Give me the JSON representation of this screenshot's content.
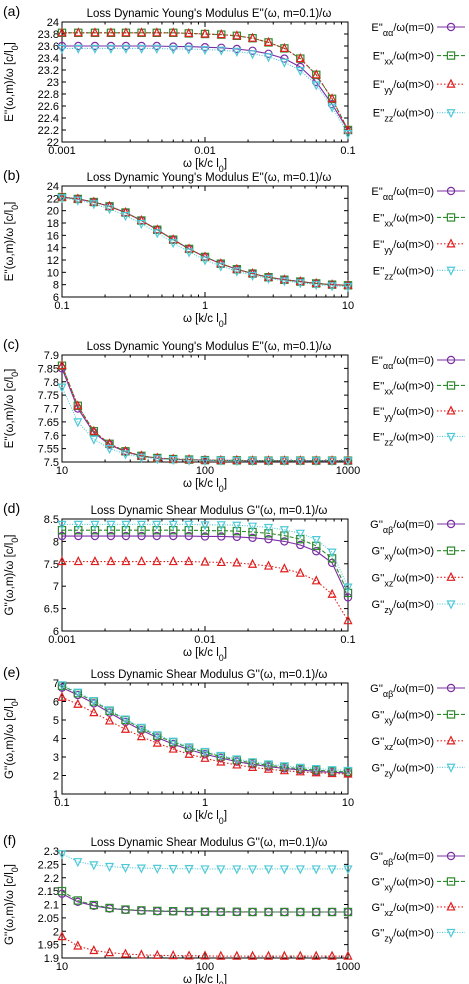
{
  "colors": {
    "aa": "#7b2fa6",
    "xx": "#2d8a2d",
    "yy": "#e01e1e",
    "zz": "#4fc9d8"
  },
  "markers": {
    "aa": "circle",
    "xx": "square",
    "yy": "triangle-up",
    "zz": "triangle-down"
  },
  "chart_data": [
    {
      "panel_label": "(a)",
      "type": "line",
      "title": "Loss Dynamic Young's Modulus E''(ω, m=0.1)/ω",
      "xlabel": "ω [k/c l0]",
      "ylabel": "E''(ω,m)/ω [c/l0]",
      "xscale": "log",
      "xlim": [
        0.001,
        0.1
      ],
      "ylim": [
        22,
        24
      ],
      "xticks": [
        0.001,
        0.01,
        0.1
      ],
      "xtick_labels": [
        "0.001",
        "0.01",
        "0.1"
      ],
      "yticks": [
        22,
        22.2,
        22.4,
        22.6,
        22.8,
        23,
        23.2,
        23.4,
        23.6,
        23.8,
        24
      ],
      "ytick_labels": [
        "22",
        "22.2",
        "22.4",
        "22.6",
        "22.8",
        "23",
        "23.2",
        "23.4",
        "23.6",
        "23.8",
        "24"
      ],
      "x": [
        0.001,
        0.0013,
        0.0017,
        0.0022,
        0.0028,
        0.0036,
        0.0046,
        0.006,
        0.0077,
        0.01,
        0.013,
        0.0167,
        0.0215,
        0.0278,
        0.0359,
        0.0464,
        0.06,
        0.0774,
        0.1
      ],
      "series": [
        {
          "key": "aa",
          "name": "E''αα/ω(m=0)",
          "values": [
            23.6,
            23.6,
            23.6,
            23.6,
            23.6,
            23.6,
            23.6,
            23.59,
            23.59,
            23.58,
            23.57,
            23.55,
            23.52,
            23.47,
            23.39,
            23.25,
            23.0,
            22.63,
            22.2
          ]
        },
        {
          "key": "xx",
          "name": "E''xx/ω(m>0)",
          "values": [
            23.82,
            23.82,
            23.82,
            23.82,
            23.82,
            23.82,
            23.82,
            23.82,
            23.81,
            23.8,
            23.79,
            23.77,
            23.73,
            23.66,
            23.56,
            23.39,
            23.12,
            22.72,
            22.2
          ]
        },
        {
          "key": "yy",
          "name": "E''yy/ω(m>0)",
          "values": [
            23.82,
            23.82,
            23.82,
            23.82,
            23.82,
            23.82,
            23.82,
            23.82,
            23.81,
            23.8,
            23.79,
            23.77,
            23.73,
            23.66,
            23.56,
            23.39,
            23.12,
            22.72,
            22.2
          ]
        },
        {
          "key": "zz",
          "name": "E''zz/ω(m>0)",
          "values": [
            23.56,
            23.56,
            23.56,
            23.56,
            23.56,
            23.56,
            23.56,
            23.55,
            23.55,
            23.54,
            23.53,
            23.51,
            23.47,
            23.42,
            23.33,
            23.19,
            22.95,
            22.58,
            22.14
          ]
        }
      ]
    },
    {
      "panel_label": "(b)",
      "type": "line",
      "title": "Loss Dynamic Young's Modulus E''(ω, m=0.1)/ω",
      "xlabel": "ω [k/c l0]",
      "ylabel": "E''(ω,m)/ω [c/l0]",
      "xscale": "log",
      "xlim": [
        0.1,
        10
      ],
      "ylim": [
        6,
        24
      ],
      "xticks": [
        0.1,
        1,
        10
      ],
      "xtick_labels": [
        "0.1",
        "1",
        "10"
      ],
      "yticks": [
        6,
        8,
        10,
        12,
        14,
        16,
        18,
        20,
        22,
        24
      ],
      "ytick_labels": [
        "6",
        "8",
        "10",
        "12",
        "14",
        "16",
        "18",
        "20",
        "22",
        "24"
      ],
      "x": [
        0.1,
        0.129,
        0.167,
        0.215,
        0.278,
        0.359,
        0.464,
        0.599,
        0.774,
        1.0,
        1.29,
        1.67,
        2.15,
        2.78,
        3.59,
        4.64,
        5.99,
        7.74,
        10
      ],
      "series": [
        {
          "key": "aa",
          "name": "E''αα/ω(m=0)",
          "values": [
            22.2,
            21.9,
            21.4,
            20.7,
            19.7,
            18.4,
            16.9,
            15.3,
            13.8,
            12.5,
            11.4,
            10.5,
            9.8,
            9.2,
            8.8,
            8.5,
            8.2,
            8.0,
            7.9
          ]
        },
        {
          "key": "xx",
          "name": "E''xx/ω(m>0)",
          "values": [
            22.2,
            21.9,
            21.4,
            20.7,
            19.7,
            18.4,
            16.9,
            15.3,
            13.8,
            12.5,
            11.4,
            10.5,
            9.8,
            9.2,
            8.8,
            8.5,
            8.2,
            8.0,
            7.9
          ]
        },
        {
          "key": "yy",
          "name": "E''yy/ω(m>0)",
          "values": [
            22.2,
            21.9,
            21.4,
            20.7,
            19.7,
            18.4,
            16.9,
            15.3,
            13.8,
            12.5,
            11.4,
            10.5,
            9.8,
            9.2,
            8.8,
            8.5,
            8.2,
            8.0,
            7.9
          ]
        },
        {
          "key": "zz",
          "name": "E''zz/ω(m>0)",
          "values": [
            22.1,
            21.7,
            21.1,
            20.3,
            19.2,
            17.9,
            16.4,
            14.8,
            13.3,
            12.0,
            11.0,
            10.2,
            9.5,
            9.0,
            8.6,
            8.3,
            8.0,
            7.8,
            7.7
          ]
        }
      ]
    },
    {
      "panel_label": "(c)",
      "type": "line",
      "title": "Loss Dynamic Young's Modulus E''(ω, m=0.1)/ω",
      "xlabel": "ω [k/c l0]",
      "ylabel": "E''(ω,m)/ω [c/l0]",
      "xscale": "log",
      "xlim": [
        10,
        1000
      ],
      "ylim": [
        7.5,
        7.9
      ],
      "xticks": [
        10,
        100,
        1000
      ],
      "xtick_labels": [
        "10",
        "100",
        "1000"
      ],
      "yticks": [
        7.5,
        7.55,
        7.6,
        7.65,
        7.7,
        7.75,
        7.8,
        7.85,
        7.9
      ],
      "ytick_labels": [
        "7.5",
        "7.55",
        "7.6",
        "7.65",
        "7.7",
        "7.75",
        "7.8",
        "7.85",
        "7.9"
      ],
      "x": [
        10,
        12.9,
        16.7,
        21.5,
        27.8,
        35.9,
        46.4,
        59.9,
        77.4,
        100,
        129,
        167,
        215,
        278,
        359,
        464,
        599,
        774,
        1000
      ],
      "series": [
        {
          "key": "aa",
          "name": "E''αα/ω(m=0)",
          "values": [
            7.85,
            7.7,
            7.61,
            7.565,
            7.538,
            7.522,
            7.514,
            7.51,
            7.508,
            7.507,
            7.506,
            7.506,
            7.505,
            7.505,
            7.505,
            7.505,
            7.505,
            7.505,
            7.505
          ]
        },
        {
          "key": "xx",
          "name": "E''xx/ω(m>0)",
          "values": [
            7.86,
            7.71,
            7.615,
            7.568,
            7.54,
            7.523,
            7.515,
            7.511,
            7.509,
            7.507,
            7.506,
            7.506,
            7.505,
            7.505,
            7.505,
            7.505,
            7.505,
            7.505,
            7.505
          ]
        },
        {
          "key": "yy",
          "name": "E''yy/ω(m>0)",
          "values": [
            7.86,
            7.71,
            7.615,
            7.568,
            7.54,
            7.523,
            7.515,
            7.511,
            7.509,
            7.507,
            7.506,
            7.506,
            7.505,
            7.505,
            7.505,
            7.505,
            7.505,
            7.505,
            7.505
          ]
        },
        {
          "key": "zz",
          "name": "E''zz/ω(m>0)",
          "values": [
            7.78,
            7.65,
            7.585,
            7.55,
            7.53,
            7.518,
            7.512,
            7.509,
            7.507,
            7.506,
            7.506,
            7.505,
            7.505,
            7.505,
            7.505,
            7.505,
            7.505,
            7.505,
            7.505
          ]
        }
      ]
    },
    {
      "panel_label": "(d)",
      "type": "line",
      "title": "Loss Dynamic Shear Modulus G''(ω, m=0.1)/ω",
      "xlabel": "ω [k/c l0]",
      "ylabel": "G''(ω,m)/ω [c/l0]",
      "xscale": "log",
      "xlim": [
        0.001,
        0.1
      ],
      "ylim": [
        6,
        8.5
      ],
      "xticks": [
        0.001,
        0.01,
        0.1
      ],
      "xtick_labels": [
        "0.001",
        "0.01",
        "0.1"
      ],
      "yticks": [
        6,
        6.5,
        7,
        7.5,
        8,
        8.5
      ],
      "ytick_labels": [
        "6",
        "6.5",
        "7",
        "7.5",
        "8",
        "8.5"
      ],
      "x": [
        0.001,
        0.0013,
        0.0017,
        0.0022,
        0.0028,
        0.0036,
        0.0046,
        0.006,
        0.0077,
        0.01,
        0.013,
        0.0167,
        0.0215,
        0.0278,
        0.0359,
        0.0464,
        0.06,
        0.0774,
        0.1
      ],
      "series": [
        {
          "key": "aa",
          "name": "G''αβ/ω(m=0)",
          "values": [
            8.12,
            8.12,
            8.12,
            8.12,
            8.12,
            8.12,
            8.12,
            8.12,
            8.12,
            8.11,
            8.11,
            8.1,
            8.08,
            8.05,
            8.0,
            7.92,
            7.78,
            7.52,
            6.75
          ]
        },
        {
          "key": "xx",
          "name": "G''xy/ω(m>0)",
          "values": [
            8.25,
            8.25,
            8.25,
            8.25,
            8.25,
            8.25,
            8.25,
            8.25,
            8.25,
            8.24,
            8.24,
            8.23,
            8.21,
            8.18,
            8.13,
            8.05,
            7.9,
            7.62,
            6.85
          ]
        },
        {
          "key": "yy",
          "name": "G''xz/ω(m>0)",
          "values": [
            7.55,
            7.55,
            7.55,
            7.55,
            7.55,
            7.55,
            7.55,
            7.55,
            7.55,
            7.54,
            7.53,
            7.52,
            7.49,
            7.45,
            7.39,
            7.29,
            7.12,
            6.82,
            6.23
          ]
        },
        {
          "key": "zz",
          "name": "G''zy/ω(m>0)",
          "values": [
            8.38,
            8.38,
            8.38,
            8.38,
            8.38,
            8.38,
            8.38,
            8.38,
            8.38,
            8.37,
            8.37,
            8.36,
            8.34,
            8.31,
            8.26,
            8.18,
            8.04,
            7.76,
            6.98
          ]
        }
      ]
    },
    {
      "panel_label": "(e)",
      "type": "line",
      "title": "Loss Dynamic Shear Modulus G''(ω, m=0.1)/ω",
      "xlabel": "ω [k/c l0]",
      "ylabel": "G''(ω,m)/ω [c/l0]",
      "xscale": "log",
      "xlim": [
        0.1,
        10
      ],
      "ylim": [
        1,
        7
      ],
      "xticks": [
        0.1,
        1,
        10
      ],
      "xtick_labels": [
        "0.1",
        "1",
        "10"
      ],
      "yticks": [
        1,
        2,
        3,
        4,
        5,
        6,
        7
      ],
      "ytick_labels": [
        "1",
        "2",
        "3",
        "4",
        "5",
        "6",
        "7"
      ],
      "x": [
        0.1,
        0.129,
        0.167,
        0.215,
        0.278,
        0.359,
        0.464,
        0.599,
        0.774,
        1.0,
        1.29,
        1.67,
        2.15,
        2.78,
        3.59,
        4.64,
        5.99,
        7.74,
        10
      ],
      "series": [
        {
          "key": "aa",
          "name": "G''αβ/ω(m=0)",
          "values": [
            6.75,
            6.35,
            5.9,
            5.4,
            4.9,
            4.45,
            4.05,
            3.7,
            3.4,
            3.15,
            2.95,
            2.75,
            2.6,
            2.48,
            2.38,
            2.3,
            2.22,
            2.17,
            2.13
          ]
        },
        {
          "key": "xx",
          "name": "G''xy/ω(m>0)",
          "values": [
            6.85,
            6.45,
            6.0,
            5.5,
            5.0,
            4.55,
            4.15,
            3.8,
            3.5,
            3.25,
            3.03,
            2.83,
            2.67,
            2.55,
            2.45,
            2.36,
            2.29,
            2.23,
            2.19
          ]
        },
        {
          "key": "yy",
          "name": "G''xz/ω(m>0)",
          "values": [
            6.23,
            5.85,
            5.4,
            4.95,
            4.5,
            4.1,
            3.75,
            3.43,
            3.15,
            2.93,
            2.73,
            2.57,
            2.44,
            2.34,
            2.26,
            2.2,
            2.15,
            2.11,
            2.08
          ]
        },
        {
          "key": "zz",
          "name": "G''zy/ω(m>0)",
          "values": [
            6.9,
            6.5,
            6.05,
            5.55,
            5.05,
            4.6,
            4.2,
            3.85,
            3.55,
            3.3,
            3.08,
            2.89,
            2.74,
            2.62,
            2.52,
            2.44,
            2.37,
            2.31,
            2.27
          ]
        }
      ]
    },
    {
      "panel_label": "(f)",
      "type": "line",
      "title": "Loss Dynamic Shear Modulus G''(ω, m=0.1)/ω",
      "xlabel": "ω [k/c l0]",
      "ylabel": "G''(ω,m)/ω [c/l0]",
      "xscale": "log",
      "xlim": [
        10,
        1000
      ],
      "ylim": [
        1.9,
        2.3
      ],
      "xticks": [
        10,
        100,
        1000
      ],
      "xtick_labels": [
        "10",
        "100",
        "1000"
      ],
      "yticks": [
        1.9,
        1.95,
        2,
        2.05,
        2.1,
        2.15,
        2.2,
        2.25,
        2.3
      ],
      "ytick_labels": [
        "1.9",
        "1.95",
        "2",
        "2.05",
        "2.1",
        "2.15",
        "2.2",
        "2.25",
        "2.3"
      ],
      "x": [
        10,
        12.9,
        16.7,
        21.5,
        27.8,
        35.9,
        46.4,
        59.9,
        77.4,
        100,
        129,
        167,
        215,
        278,
        359,
        464,
        599,
        774,
        1000
      ],
      "series": [
        {
          "key": "aa",
          "name": "G''αβ/ω(m=0)",
          "values": [
            2.14,
            2.11,
            2.095,
            2.085,
            2.08,
            2.077,
            2.075,
            2.074,
            2.073,
            2.073,
            2.072,
            2.072,
            2.072,
            2.072,
            2.072,
            2.072,
            2.072,
            2.072,
            2.072
          ]
        },
        {
          "key": "xx",
          "name": "G''xy/ω(m>0)",
          "values": [
            2.15,
            2.115,
            2.098,
            2.087,
            2.081,
            2.078,
            2.076,
            2.075,
            2.074,
            2.073,
            2.073,
            2.073,
            2.072,
            2.072,
            2.072,
            2.072,
            2.072,
            2.072,
            2.072
          ]
        },
        {
          "key": "yy",
          "name": "G''xz/ω(m>0)",
          "values": [
            1.98,
            1.945,
            1.928,
            1.92,
            1.915,
            1.912,
            1.91,
            1.909,
            1.908,
            1.908,
            1.907,
            1.907,
            1.907,
            1.907,
            1.907,
            1.907,
            1.907,
            1.907,
            1.907
          ]
        },
        {
          "key": "zz",
          "name": "G''zy/ω(m>0)",
          "values": [
            2.29,
            2.26,
            2.248,
            2.242,
            2.238,
            2.236,
            2.235,
            2.234,
            2.234,
            2.233,
            2.233,
            2.233,
            2.233,
            2.233,
            2.233,
            2.233,
            2.233,
            2.233,
            2.233
          ]
        }
      ]
    }
  ]
}
